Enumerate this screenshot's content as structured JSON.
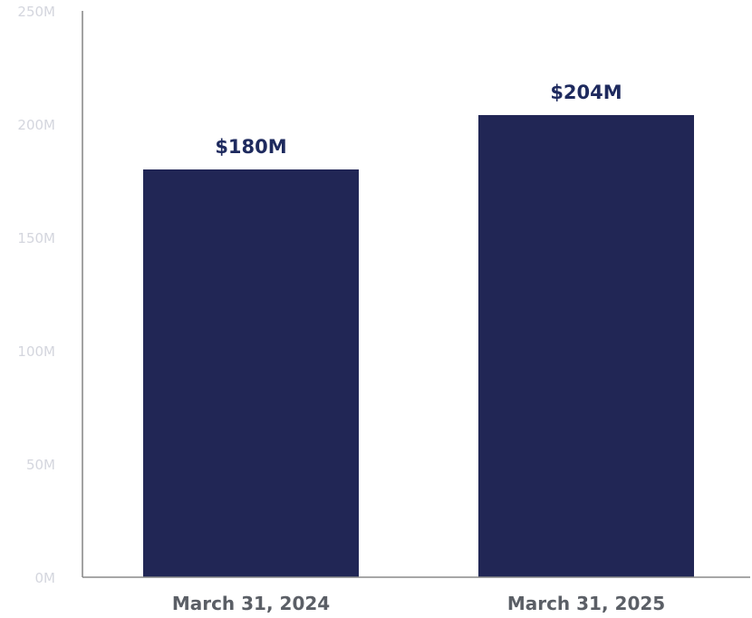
{
  "chart_data": {
    "type": "bar",
    "categories": [
      "March 31, 2024",
      "March 31, 2025"
    ],
    "values": [
      180,
      204
    ],
    "data_labels": [
      "$180M",
      "$204M"
    ],
    "y_ticks": [
      0,
      50,
      100,
      150,
      200,
      250
    ],
    "y_tick_labels": [
      "0M",
      "50M",
      "100M",
      "150M",
      "200M",
      "250M"
    ],
    "ylim": [
      0,
      250
    ],
    "grid": false,
    "legend": "none",
    "bar_color": "#212655",
    "data_label_color": "#1e2a5e"
  }
}
